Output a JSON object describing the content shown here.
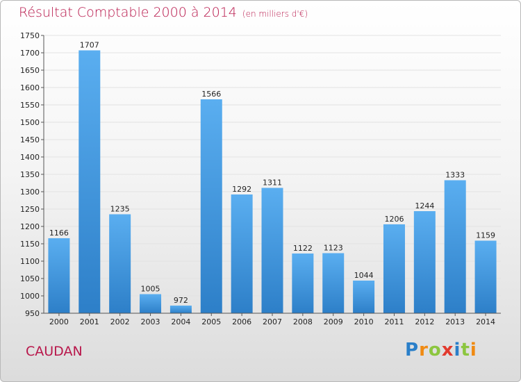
{
  "header": {
    "title": "Résultat Comptable 2000 à 2014",
    "unit": "(en milliers d'€)"
  },
  "footer": {
    "commune": "CAUDAN",
    "logo": "Proxiti"
  },
  "colors": {
    "accent": "#b8174b",
    "bar_top": "#5aaef0",
    "bar_bottom": "#2d7fc8"
  },
  "chart_data": {
    "type": "bar",
    "title": "Résultat Comptable 2000 à 2014",
    "subtitle": "(en milliers d'€)",
    "xlabel": "",
    "ylabel": "",
    "categories": [
      "2000",
      "2001",
      "2002",
      "2003",
      "2004",
      "2005",
      "2006",
      "2007",
      "2008",
      "2009",
      "2010",
      "2011",
      "2012",
      "2013",
      "2014"
    ],
    "values": [
      1166,
      1707,
      1235,
      1005,
      972,
      1566,
      1292,
      1311,
      1122,
      1123,
      1044,
      1206,
      1244,
      1333,
      1159
    ],
    "ylim": [
      950,
      1750
    ],
    "yticks": [
      950,
      1000,
      1050,
      1100,
      1150,
      1200,
      1250,
      1300,
      1350,
      1400,
      1450,
      1500,
      1550,
      1600,
      1650,
      1700,
      1750
    ],
    "grid": true,
    "legend": "none"
  }
}
